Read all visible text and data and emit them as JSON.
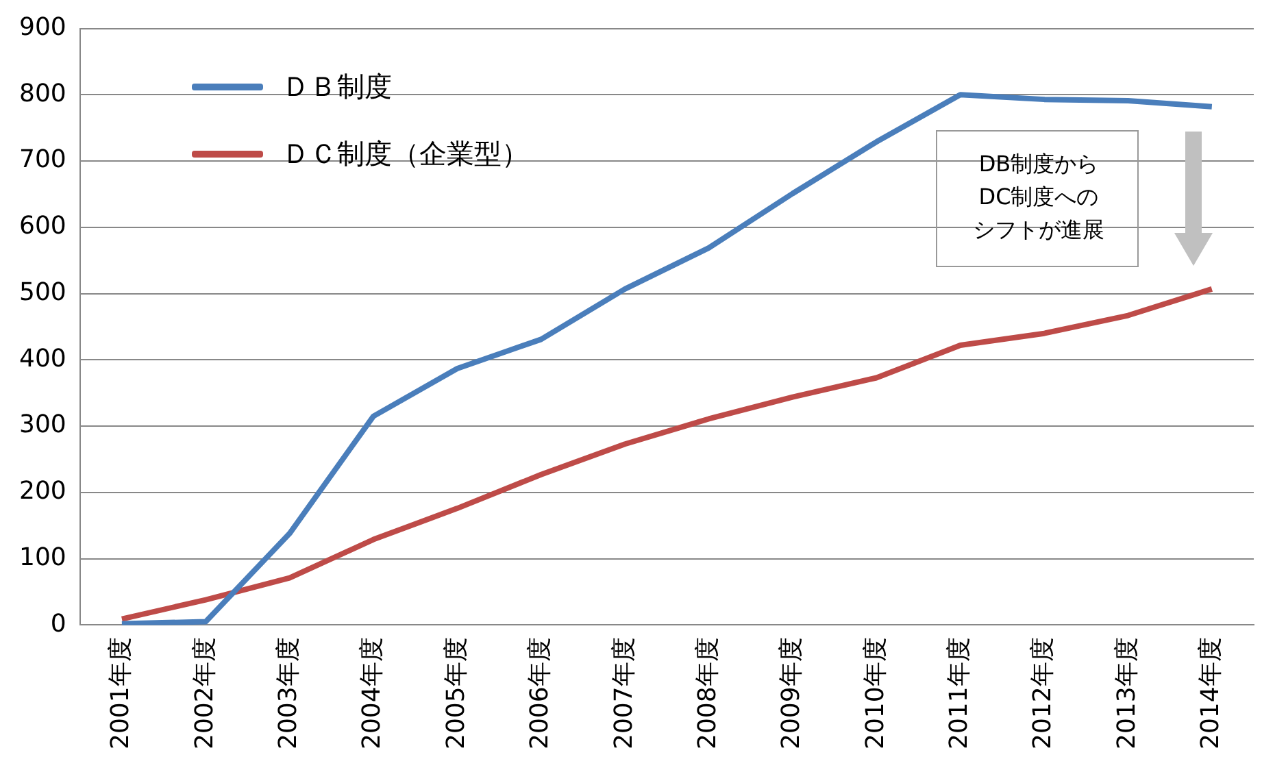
{
  "chart_data": {
    "type": "line",
    "categories": [
      "2001年度",
      "2002年度",
      "2003年度",
      "2004年度",
      "2005年度",
      "2006年度",
      "2007年度",
      "2008年度",
      "2009年度",
      "2010年度",
      "2011年度",
      "2012年度",
      "2013年度",
      "2014年度"
    ],
    "series": [
      {
        "name": "ＤＢ制度",
        "color": "#4a7ebb",
        "values": [
          2,
          5,
          138,
          315,
          387,
          431,
          507,
          569,
          651,
          729,
          800,
          793,
          791,
          782
        ]
      },
      {
        "name": "ＤＣ制度（企業型）",
        "color": "#be4b48",
        "values": [
          9,
          38,
          71,
          129,
          176,
          227,
          273,
          311,
          344,
          373,
          422,
          440,
          467,
          507
        ]
      }
    ],
    "ylim": [
      0,
      900
    ],
    "yticks": [
      0,
      100,
      200,
      300,
      400,
      500,
      600,
      700,
      800,
      900
    ],
    "grid": "y",
    "legend": "top left",
    "marker": "none",
    "line_style": "solid",
    "annotations": [
      "DB制度からDC制度へのシフトが進展"
    ]
  }
}
